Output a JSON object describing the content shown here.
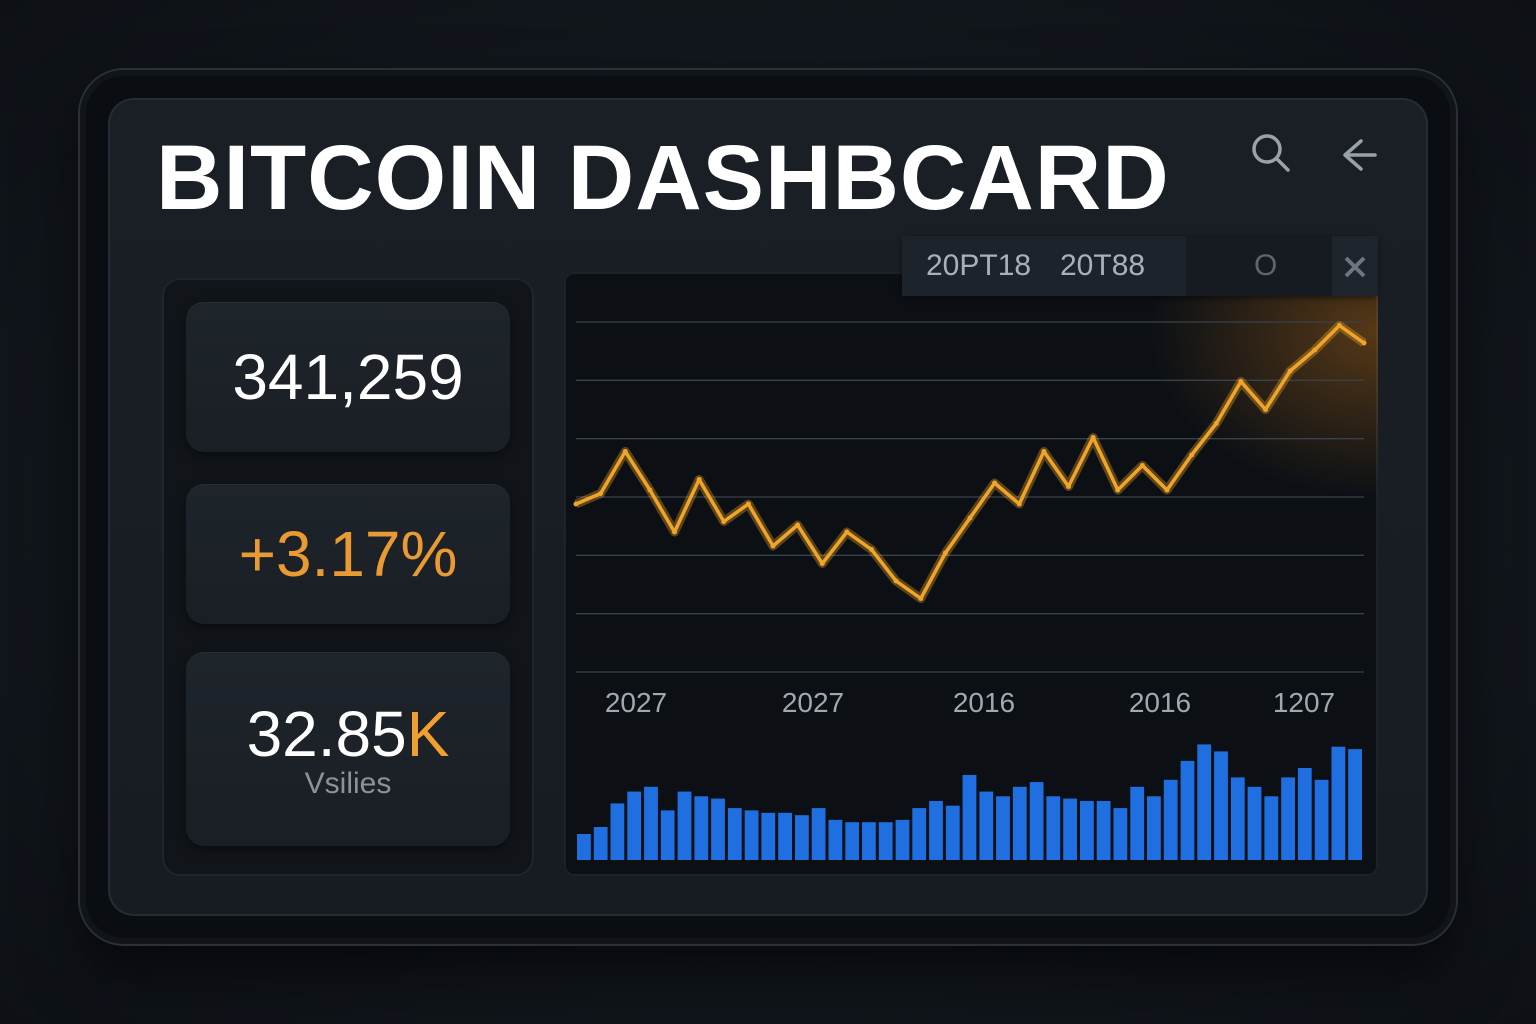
{
  "header": {
    "title": "BITCOIN DASHBCARD",
    "search_icon": "search-icon",
    "back_icon": "arrow-left-icon"
  },
  "range_tabs": {
    "tab1": "20PT18",
    "tab2": "20T88",
    "tab3": "O",
    "close_icon": "close-icon"
  },
  "stats": {
    "price": "341,259",
    "change": "+3.17%",
    "volume_number": "32.85",
    "volume_suffix": "K",
    "volume_label": "Vsilies"
  },
  "colors": {
    "accent_orange": "#f0a52a",
    "volume_blue": "#1f6fe0",
    "background": "#171c22"
  },
  "chart_data": [
    {
      "type": "line",
      "x_tick_labels": [
        "2027",
        "2027",
        "2016",
        "2016",
        "1207"
      ],
      "grid": true,
      "series": [
        {
          "values": [
            48,
            51,
            63,
            52,
            40,
            55,
            43,
            48,
            36,
            42,
            31,
            40,
            35,
            26,
            21,
            34,
            44,
            54,
            48,
            63,
            53,
            67,
            52,
            59,
            52,
            62,
            71,
            83,
            75,
            86,
            92,
            99,
            94
          ]
        }
      ]
    },
    {
      "type": "bar",
      "values": [
        22,
        28,
        48,
        58,
        62,
        42,
        58,
        54,
        52,
        44,
        42,
        40,
        40,
        38,
        44,
        34,
        32,
        32,
        32,
        34,
        44,
        50,
        46,
        72,
        58,
        54,
        62,
        66,
        54,
        52,
        50,
        50,
        44,
        62,
        54,
        68,
        84,
        98,
        92,
        70,
        62,
        54,
        70,
        78,
        68,
        96,
        94
      ]
    }
  ]
}
